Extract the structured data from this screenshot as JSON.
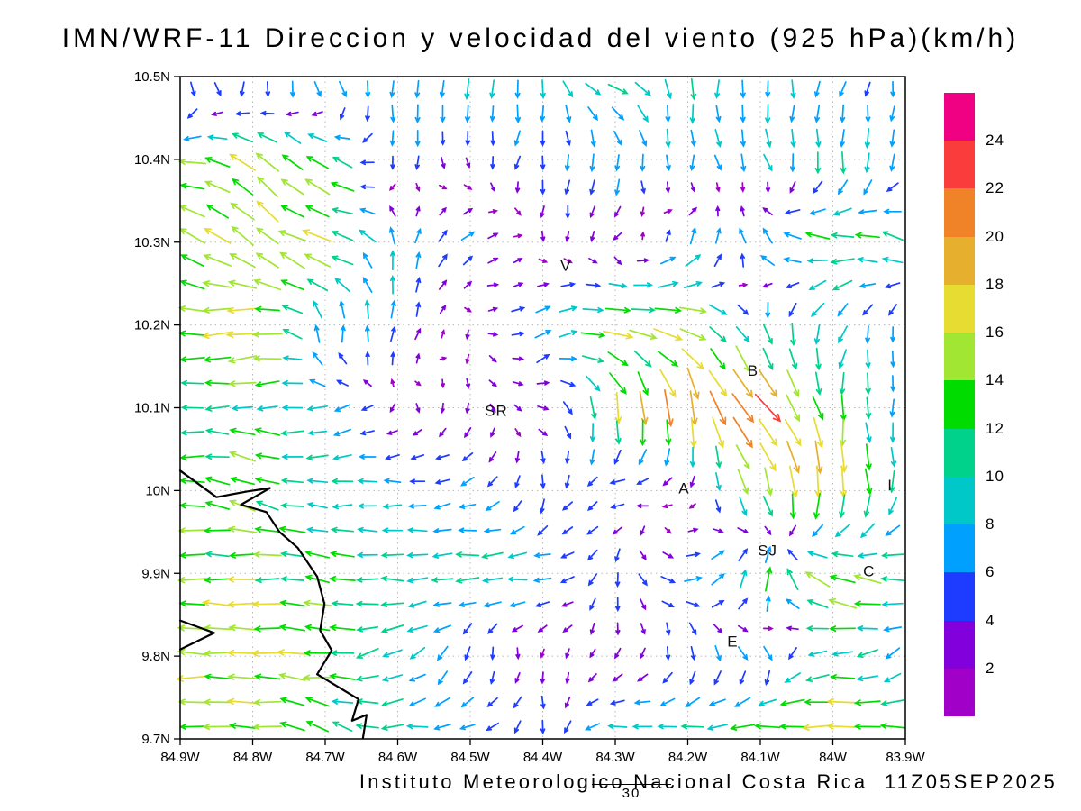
{
  "chart_data": {
    "type": "quiver",
    "title": "IMN/WRF-11 Direccion y velocidad del viento (925 hPa)(km/h)",
    "caption": "Instituto Meteorologico Nacional Costa Rica  11Z05SEP2025",
    "frame_label": "30",
    "units": "km/h",
    "valid_time": "11Z05SEP2025",
    "grid": true,
    "legend_position": "right",
    "lon_range": [
      -84.9,
      -83.9
    ],
    "lat_range": [
      9.7,
      10.5
    ],
    "x_ticks": [
      {
        "lon": -84.9,
        "label": "84.9W"
      },
      {
        "lon": -84.8,
        "label": "84.8W"
      },
      {
        "lon": -84.7,
        "label": "84.7W"
      },
      {
        "lon": -84.6,
        "label": "84.6W"
      },
      {
        "lon": -84.5,
        "label": "84.5W"
      },
      {
        "lon": -84.4,
        "label": "84.4W"
      },
      {
        "lon": -84.3,
        "label": "84.3W"
      },
      {
        "lon": -84.2,
        "label": "84.2W"
      },
      {
        "lon": -84.1,
        "label": "84.1W"
      },
      {
        "lon": -84.0,
        "label": "84W"
      },
      {
        "lon": -83.9,
        "label": "83.9W"
      }
    ],
    "y_ticks": [
      {
        "lat": 10.5,
        "label": "10.5N"
      },
      {
        "lat": 10.4,
        "label": "10.4N"
      },
      {
        "lat": 10.3,
        "label": "10.3N"
      },
      {
        "lat": 10.2,
        "label": "10.2N"
      },
      {
        "lat": 10.1,
        "label": "10.1N"
      },
      {
        "lat": 10.0,
        "label": "10N"
      },
      {
        "lat": 9.9,
        "label": "9.9N"
      },
      {
        "lat": 9.8,
        "label": "9.8N"
      },
      {
        "lat": 9.7,
        "label": "9.7N"
      }
    ],
    "colorbar": {
      "levels": [
        2,
        4,
        6,
        8,
        10,
        12,
        14,
        16,
        18,
        20,
        22,
        24
      ],
      "colors": [
        "#a000c8",
        "#8200dc",
        "#1e3cff",
        "#00a0ff",
        "#00c8c8",
        "#00d28c",
        "#00dc00",
        "#a0e632",
        "#e6dc32",
        "#e6af2d",
        "#f08228",
        "#fa3c3c",
        "#f00082"
      ]
    },
    "cities": [
      {
        "label": "V",
        "lon": -84.368,
        "lat": 10.272
      },
      {
        "label": "B",
        "lon": -84.11,
        "lat": 10.145
      },
      {
        "label": "SR",
        "lon": -84.464,
        "lat": 10.097
      },
      {
        "label": "A",
        "lon": -84.205,
        "lat": 10.003
      },
      {
        "label": "SJ",
        "lon": -84.09,
        "lat": 9.928
      },
      {
        "label": "C",
        "lon": -83.95,
        "lat": 9.903
      },
      {
        "label": "E",
        "lon": -84.138,
        "lat": 9.818
      },
      {
        "label": "I",
        "lon": -83.921,
        "lat": 10.007
      }
    ],
    "coastlines": [
      [
        [
          -84.9,
          10.024
        ],
        [
          -84.85,
          9.992
        ],
        [
          -84.807,
          9.999
        ],
        [
          -84.776,
          10.003
        ],
        [
          -84.816,
          9.983
        ],
        [
          -84.781,
          9.974
        ],
        [
          -84.763,
          9.95
        ],
        [
          -84.738,
          9.931
        ],
        [
          -84.711,
          9.896
        ],
        [
          -84.701,
          9.863
        ],
        [
          -84.707,
          9.831
        ],
        [
          -84.691,
          9.807
        ],
        [
          -84.711,
          9.778
        ],
        [
          -84.654,
          9.748
        ],
        [
          -84.663,
          9.722
        ],
        [
          -84.643,
          9.729
        ],
        [
          -84.648,
          9.701
        ]
      ],
      [
        [
          -84.9,
          9.843
        ],
        [
          -84.853,
          9.828
        ],
        [
          -84.9,
          9.808
        ]
      ]
    ],
    "wind_field": {
      "convention": "dir_deg_math: direction arrow points, 0=east 90=north; speed in km/h; rows=lats top-to-bottom, cols=lons west-to-east",
      "lats": [
        10.5,
        10.4,
        10.3,
        10.2,
        10.1,
        10.0,
        9.9,
        9.8,
        9.7
      ],
      "lons": [
        -84.9,
        -84.8,
        -84.7,
        -84.6,
        -84.5,
        -84.4,
        -84.3,
        -84.2,
        -84.1,
        -84.0,
        -83.9
      ],
      "dir_deg_math": [
        [
          -45,
          -80,
          -60,
          -90,
          -90,
          -90,
          -20,
          -90,
          -90,
          -110,
          -90
        ],
        [
          180,
          140,
          150,
          -90,
          -90,
          -100,
          -90,
          -90,
          -70,
          -90,
          -90
        ],
        [
          150,
          135,
          170,
          90,
          45,
          -90,
          -135,
          60,
          120,
          180,
          150
        ],
        [
          180,
          -170,
          90,
          80,
          -90,
          30,
          0,
          -10,
          -80,
          -120,
          -90
        ],
        [
          180,
          180,
          -170,
          -90,
          -90,
          0,
          -80,
          -85,
          -45,
          -85,
          -90
        ],
        [
          180,
          160,
          180,
          180,
          -160,
          -90,
          180,
          180,
          -75,
          -85,
          -90
        ],
        [
          180,
          180,
          170,
          180,
          180,
          180,
          -90,
          0,
          80,
          160,
          180
        ],
        [
          180,
          175,
          180,
          -150,
          -90,
          -90,
          -120,
          -90,
          -60,
          180,
          -135
        ],
        [
          180,
          180,
          150,
          180,
          -170,
          -90,
          180,
          180,
          180,
          180,
          170
        ]
      ],
      "speed_kmh": [
        [
          10,
          8,
          10,
          8,
          10,
          8,
          12,
          10,
          8,
          6,
          6
        ],
        [
          14,
          16,
          14,
          6,
          3,
          6,
          8,
          6,
          8,
          10,
          8
        ],
        [
          14,
          16,
          16,
          8,
          6,
          2,
          3,
          8,
          10,
          14,
          12
        ],
        [
          16,
          18,
          10,
          8,
          2,
          8,
          16,
          16,
          10,
          8,
          6
        ],
        [
          10,
          12,
          8,
          2,
          3,
          3,
          16,
          21,
          23,
          14,
          6
        ],
        [
          12,
          14,
          10,
          8,
          6,
          6,
          6,
          3,
          16,
          18,
          8
        ],
        [
          14,
          14,
          12,
          10,
          12,
          8,
          6,
          8,
          14,
          16,
          12
        ],
        [
          16,
          16,
          14,
          10,
          6,
          2,
          3,
          6,
          8,
          12,
          8
        ],
        [
          14,
          14,
          12,
          10,
          8,
          6,
          10,
          12,
          14,
          20,
          12
        ]
      ]
    }
  }
}
